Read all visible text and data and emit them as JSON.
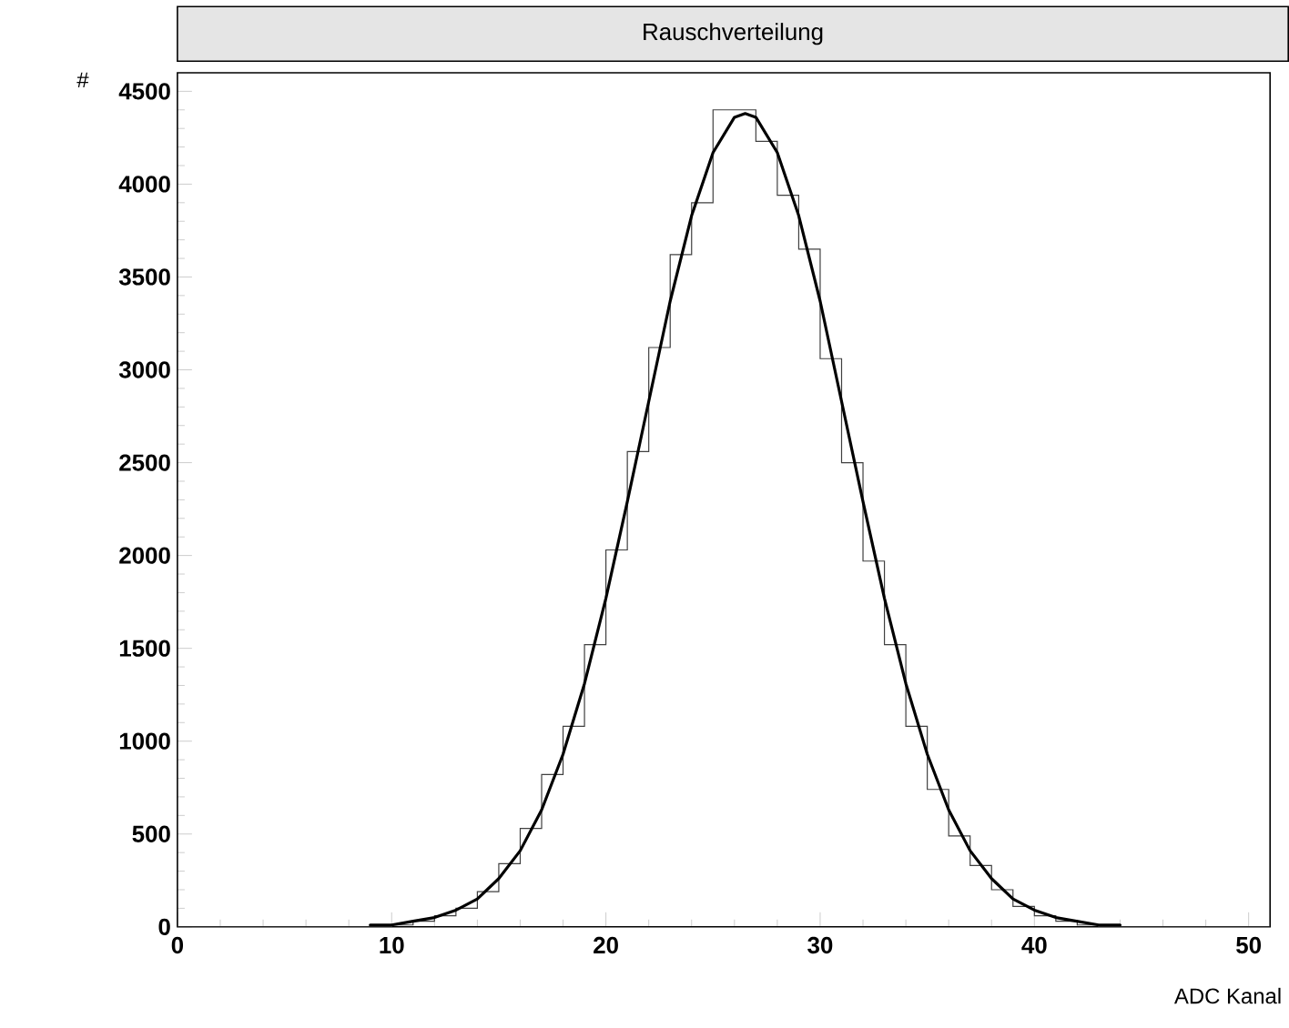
{
  "chart_data": {
    "type": "histogram",
    "title": "Rauschverteilung",
    "xlabel": "ADC Kanal",
    "ylabel": "#",
    "xlim": [
      0,
      51
    ],
    "ylim": [
      0,
      4600
    ],
    "xticks": [
      0,
      10,
      20,
      30,
      40,
      50
    ],
    "yticks": [
      0,
      500,
      1000,
      1500,
      2000,
      2500,
      3000,
      3500,
      4000,
      4500
    ],
    "grid": false,
    "series": [
      {
        "color": "#404040",
        "bins": [
          0,
          1,
          2,
          3,
          4,
          5,
          6,
          7,
          8,
          9,
          10,
          11,
          12,
          13,
          14,
          15,
          16,
          17,
          18,
          19,
          20,
          21,
          22,
          23,
          24,
          25,
          26,
          27,
          28,
          29,
          30,
          31,
          32,
          33,
          34,
          35,
          36,
          37,
          38,
          39,
          40,
          41,
          42,
          43,
          44,
          45,
          46,
          47,
          48,
          49,
          50,
          51
        ],
        "values": [
          0,
          0,
          0,
          0,
          0,
          0,
          0,
          0,
          0,
          0,
          10,
          30,
          60,
          100,
          190,
          340,
          530,
          820,
          1080,
          1520,
          2030,
          2560,
          3120,
          3620,
          3900,
          4400,
          4400,
          4230,
          3940,
          3650,
          3060,
          2500,
          1970,
          1520,
          1080,
          740,
          490,
          330,
          200,
          110,
          60,
          30,
          10,
          0,
          0,
          0,
          0,
          0,
          0,
          0,
          0
        ]
      },
      {
        "type": "line",
        "color": "#000000",
        "x": [
          9,
          10,
          11,
          12,
          13,
          14,
          15,
          16,
          17,
          18,
          19,
          20,
          21,
          22,
          23,
          24,
          25,
          26,
          26.5,
          27,
          28,
          29,
          30,
          31,
          32,
          33,
          34,
          35,
          36,
          37,
          38,
          39,
          40,
          41,
          42,
          43,
          44
        ],
        "values": [
          10,
          10,
          30,
          50,
          90,
          150,
          260,
          410,
          630,
          930,
          1310,
          1770,
          2290,
          2830,
          3370,
          3830,
          4170,
          4360,
          4380,
          4360,
          4170,
          3830,
          3370,
          2830,
          2290,
          1770,
          1310,
          930,
          630,
          410,
          260,
          150,
          90,
          50,
          30,
          10,
          10
        ]
      }
    ]
  }
}
